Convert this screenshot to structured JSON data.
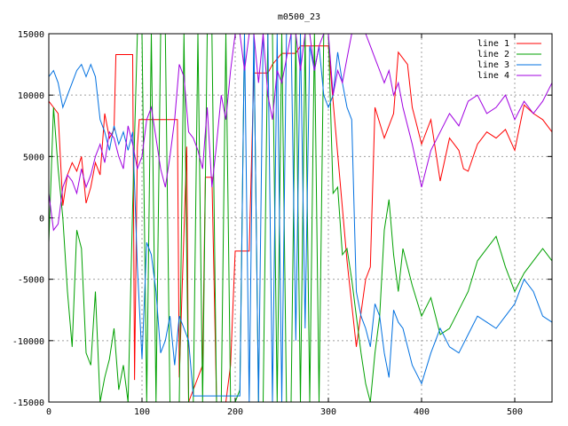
{
  "chart_data": {
    "type": "line",
    "title": "m0500_23",
    "xlabel": "",
    "ylabel": "",
    "xlim": [
      0,
      540
    ],
    "ylim": [
      -15000,
      15000
    ],
    "xticks": [
      0,
      100,
      200,
      300,
      400,
      500
    ],
    "yticks": [
      -15000,
      -10000,
      -5000,
      0,
      5000,
      10000,
      15000
    ],
    "grid": true,
    "legend_position": "top-right",
    "series": [
      {
        "name": "line 1",
        "color": "#ff0000",
        "x": [
          0,
          5,
          10,
          15,
          20,
          25,
          30,
          35,
          40,
          45,
          50,
          55,
          60,
          65,
          70,
          72,
          90,
          92,
          95,
          97,
          138,
          140,
          148,
          150,
          165,
          168,
          175,
          180,
          190,
          195,
          200,
          205,
          210,
          215,
          220,
          225,
          235,
          240,
          250,
          255,
          265,
          270,
          290,
          300,
          305,
          320,
          330,
          340,
          345,
          350,
          360,
          370,
          375,
          385,
          390,
          395,
          400,
          410,
          420,
          430,
          440,
          445,
          450,
          460,
          470,
          480,
          490,
          500,
          510,
          520,
          530,
          540
        ],
        "y": [
          9500,
          9000,
          8500,
          1000,
          3500,
          4500,
          3800,
          5000,
          1200,
          2500,
          4500,
          3500,
          8500,
          6500,
          7200,
          13300,
          13300,
          -13200,
          5800,
          8000,
          8000,
          -13000,
          5800,
          -15000,
          -12000,
          3300,
          3300,
          -15000,
          -15000,
          -12000,
          -2700,
          -2700,
          -2700,
          -2700,
          11800,
          11800,
          11800,
          12500,
          13400,
          13400,
          13400,
          14000,
          14000,
          14000,
          9500,
          -3500,
          -10500,
          -5000,
          -4000,
          9000,
          6500,
          8500,
          13500,
          12500,
          9000,
          7500,
          6000,
          8000,
          3000,
          6500,
          5500,
          4000,
          3800,
          6000,
          7000,
          6500,
          7200,
          5500,
          9200,
          8500,
          8000,
          7000
        ]
      },
      {
        "name": "line 2",
        "color": "#00a000",
        "x": [
          0,
          5,
          10,
          15,
          20,
          25,
          30,
          35,
          40,
          45,
          50,
          55,
          60,
          65,
          70,
          75,
          80,
          85,
          90,
          95,
          100,
          105,
          110,
          115,
          120,
          125,
          130,
          135,
          140,
          145,
          150,
          155,
          160,
          165,
          170,
          175,
          180,
          185,
          190,
          195,
          200,
          205,
          210,
          215,
          220,
          225,
          230,
          235,
          240,
          245,
          250,
          255,
          260,
          265,
          270,
          275,
          280,
          285,
          290,
          295,
          300,
          305,
          310,
          315,
          320,
          325,
          330,
          335,
          340,
          345,
          350,
          355,
          360,
          365,
          370,
          375,
          380,
          390,
          400,
          410,
          420,
          430,
          440,
          450,
          460,
          470,
          480,
          490,
          500,
          510,
          520,
          530,
          540
        ],
        "y": [
          -2000,
          9000,
          4000,
          0,
          -6000,
          -10500,
          -1000,
          -2500,
          -11000,
          -12000,
          -6000,
          -15000,
          -13000,
          -11500,
          -9000,
          -14000,
          -12000,
          -15000,
          1000,
          15000,
          15000,
          -15000,
          15000,
          -15000,
          15000,
          15000,
          -15000,
          -15000,
          -15000,
          15000,
          -15000,
          -15000,
          15000,
          -15000,
          15000,
          15000,
          -15000,
          -15000,
          15000,
          -15000,
          -15000,
          -14000,
          15000,
          15000,
          15000,
          -15000,
          -15000,
          15000,
          15000,
          -15000,
          15000,
          -15000,
          -15000,
          15000,
          -15000,
          15000,
          -15000,
          15000,
          -15000,
          15000,
          15000,
          2000,
          2500,
          -3000,
          -2500,
          -5000,
          -8000,
          -11000,
          -13500,
          -15000,
          -11000,
          -8000,
          -1000,
          1500,
          -3000,
          -6000,
          -2500,
          -5500,
          -8000,
          -6500,
          -9500,
          -9000,
          -7500,
          -6000,
          -3500,
          -2500,
          -1500,
          -4000,
          -6000,
          -4500,
          -3500,
          -2500,
          -3500
        ]
      },
      {
        "name": "line 3",
        "color": "#0070e0",
        "x": [
          0,
          5,
          10,
          15,
          20,
          25,
          30,
          35,
          40,
          45,
          50,
          55,
          60,
          65,
          70,
          75,
          80,
          85,
          90,
          95,
          100,
          105,
          110,
          115,
          120,
          125,
          130,
          135,
          140,
          145,
          150,
          155,
          160,
          165,
          170,
          175,
          180,
          185,
          190,
          195,
          200,
          205,
          210,
          215,
          220,
          225,
          230,
          235,
          240,
          245,
          250,
          255,
          260,
          265,
          270,
          275,
          280,
          285,
          290,
          295,
          300,
          305,
          310,
          315,
          320,
          325,
          330,
          335,
          340,
          345,
          350,
          355,
          360,
          365,
          370,
          375,
          380,
          390,
          400,
          410,
          420,
          430,
          440,
          450,
          460,
          470,
          480,
          490,
          500,
          510,
          520,
          530,
          540
        ],
        "y": [
          11500,
          12000,
          11000,
          9000,
          10000,
          11000,
          12000,
          12500,
          11500,
          12500,
          11500,
          8000,
          7000,
          5500,
          7500,
          6000,
          7000,
          5500,
          7000,
          -4000,
          -11500,
          -2000,
          -3000,
          -6000,
          -11000,
          -10000,
          -8000,
          -12000,
          -8000,
          -9000,
          -10000,
          -14500,
          -14500,
          -14500,
          -14500,
          -14500,
          -14500,
          -14500,
          -14500,
          -14500,
          -14500,
          -14500,
          15000,
          -15000,
          15000,
          -15000,
          15000,
          15000,
          -15000,
          15000,
          -15000,
          15000,
          15000,
          -10000,
          15000,
          -9000,
          14000,
          12000,
          14000,
          10000,
          9000,
          10000,
          13500,
          11000,
          9000,
          8000,
          -6000,
          -8000,
          -9000,
          -10500,
          -7000,
          -8000,
          -11000,
          -13000,
          -7500,
          -8500,
          -9000,
          -12000,
          -13500,
          -11000,
          -9000,
          -10500,
          -11000,
          -9500,
          -8000,
          -8500,
          -9000,
          -8000,
          -7000,
          -5000,
          -6000,
          -8000,
          -8500
        ]
      },
      {
        "name": "line 4",
        "color": "#a000e0",
        "x": [
          0,
          5,
          10,
          15,
          20,
          25,
          30,
          35,
          40,
          45,
          50,
          55,
          60,
          65,
          70,
          75,
          80,
          85,
          90,
          95,
          100,
          105,
          110,
          115,
          120,
          125,
          130,
          135,
          140,
          145,
          150,
          155,
          160,
          165,
          170,
          175,
          180,
          185,
          190,
          195,
          200,
          205,
          210,
          215,
          220,
          225,
          230,
          235,
          240,
          245,
          250,
          255,
          260,
          265,
          270,
          275,
          280,
          285,
          290,
          295,
          300,
          305,
          310,
          315,
          320,
          325,
          330,
          335,
          340,
          345,
          350,
          355,
          360,
          365,
          370,
          375,
          380,
          390,
          400,
          410,
          420,
          430,
          440,
          450,
          460,
          470,
          480,
          490,
          500,
          510,
          520,
          530,
          540
        ],
        "y": [
          2000,
          -1000,
          -500,
          2500,
          3500,
          3000,
          2000,
          4000,
          2500,
          3500,
          5000,
          6000,
          4500,
          7000,
          6500,
          5000,
          4000,
          7500,
          6000,
          4000,
          5000,
          8000,
          9000,
          6500,
          4000,
          2500,
          5000,
          8000,
          12500,
          11500,
          7000,
          6500,
          5500,
          4000,
          9000,
          2500,
          6000,
          10000,
          8000,
          12000,
          15000,
          15000,
          12000,
          15000,
          15000,
          11000,
          15000,
          10000,
          8000,
          12000,
          11000,
          13000,
          15000,
          15000,
          12000,
          15000,
          15000,
          12000,
          14000,
          15000,
          15000,
          10000,
          12000,
          11000,
          13000,
          15000,
          15000,
          15000,
          15000,
          14000,
          13000,
          12000,
          11000,
          12000,
          10000,
          11000,
          9000,
          6000,
          2500,
          5500,
          7000,
          8500,
          7500,
          9500,
          10000,
          8500,
          9000,
          10000,
          8000,
          9500,
          8500,
          9500,
          11000
        ]
      }
    ]
  }
}
